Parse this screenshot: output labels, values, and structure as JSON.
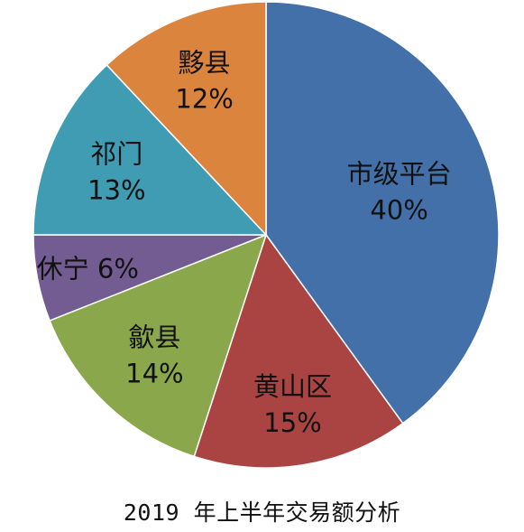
{
  "chart_data": {
    "type": "pie",
    "title": "2019 年上半年交易额分析",
    "slices": [
      {
        "name": "市级平台",
        "value": 40,
        "label": "40%",
        "color": "#4470AA"
      },
      {
        "name": "黄山区",
        "value": 15,
        "label": "15%",
        "color": "#AA4443"
      },
      {
        "name": "歙县",
        "value": 14,
        "label": "14%",
        "color": "#8BA74C"
      },
      {
        "name": "休宁",
        "value": 6,
        "label": "6%",
        "color": "#735C92"
      },
      {
        "name": "祁门",
        "value": 13,
        "label": "13%",
        "color": "#3F9CB2"
      },
      {
        "name": "黟县",
        "value": 12,
        "label": "12%",
        "color": "#DB843D"
      }
    ],
    "legend": "none"
  }
}
